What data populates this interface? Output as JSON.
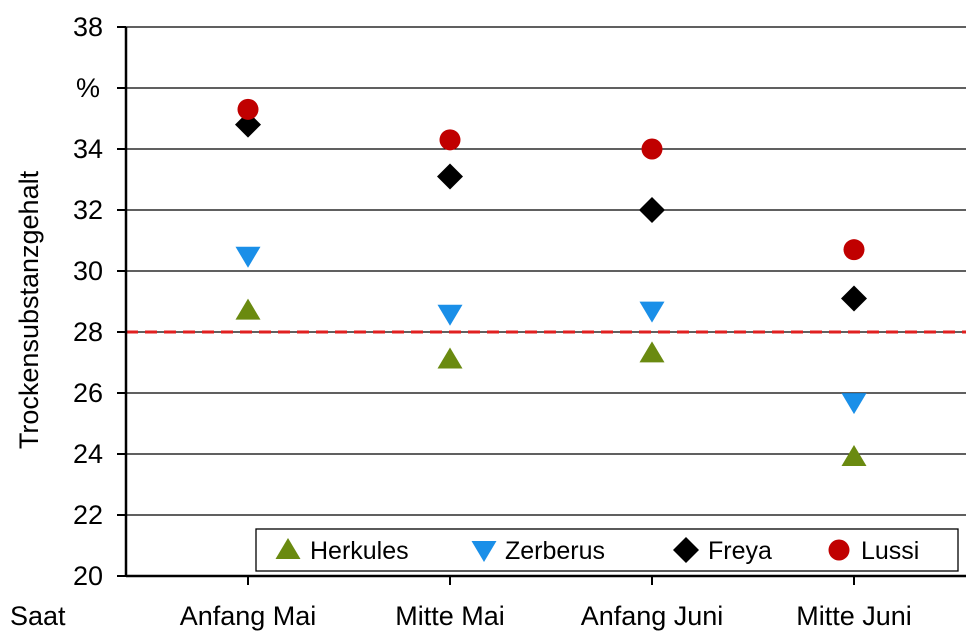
{
  "chart_data": {
    "type": "scatter",
    "title": "",
    "xlabel": "Saat",
    "ylabel": "Trockensubstanzgehalt",
    "unit_label": "%",
    "categories": [
      "Anfang Mai",
      "Mitte Mai",
      "Anfang Juni",
      "Mitte Juni"
    ],
    "ylim": [
      20,
      38
    ],
    "yticks": [
      20,
      22,
      24,
      26,
      28,
      30,
      32,
      34,
      38
    ],
    "grid": true,
    "reference_line": {
      "y": 28,
      "color": "#e02020",
      "style": "dashed"
    },
    "legend_position": "bottom",
    "series": [
      {
        "name": "Herkules",
        "marker": "triangle-up",
        "color": "#6a8a10",
        "values": [
          28.7,
          27.1,
          27.3,
          23.9
        ]
      },
      {
        "name": "Zerberus",
        "marker": "triangle-down",
        "color": "#1a8fe8",
        "values": [
          30.5,
          28.6,
          28.7,
          25.7
        ]
      },
      {
        "name": "Freya",
        "marker": "diamond",
        "color": "#000000",
        "values": [
          34.8,
          33.1,
          32.0,
          29.1
        ]
      },
      {
        "name": "Lussi",
        "marker": "circle",
        "color": "#c00000",
        "values": [
          35.3,
          34.3,
          34.0,
          30.7
        ]
      }
    ]
  }
}
